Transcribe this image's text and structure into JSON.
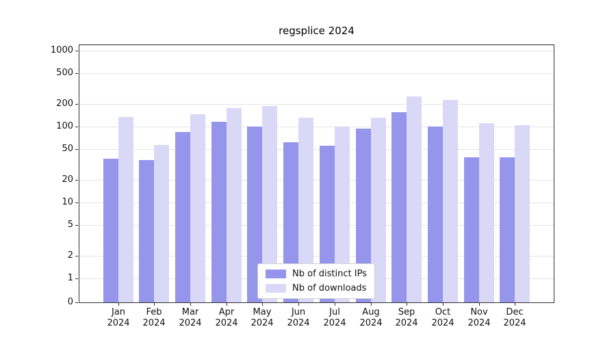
{
  "title": "regsplice 2024",
  "chart_data": {
    "type": "bar",
    "title": "regsplice 2024",
    "categories": [
      "Jan",
      "Feb",
      "Mar",
      "Apr",
      "May",
      "Jun",
      "Jul",
      "Aug",
      "Sep",
      "Oct",
      "Nov",
      "Dec"
    ],
    "year": "2024",
    "series": [
      {
        "name": "Nb of distinct IPs",
        "color": "#9595ec",
        "values": [
          38,
          36,
          85,
          115,
          100,
          62,
          56,
          93,
          155,
          100,
          39,
          39
        ]
      },
      {
        "name": "Nb of downloads",
        "color": "#d9d9f7",
        "values": [
          135,
          57,
          145,
          175,
          185,
          130,
          101,
          130,
          250,
          225,
          112,
          105
        ]
      }
    ],
    "yticks": [
      0,
      1,
      2,
      5,
      10,
      20,
      50,
      100,
      200,
      500,
      1000
    ],
    "yscale": "symlog",
    "ylim": [
      0,
      1100
    ],
    "grid": true,
    "legend_position": "lower center"
  }
}
